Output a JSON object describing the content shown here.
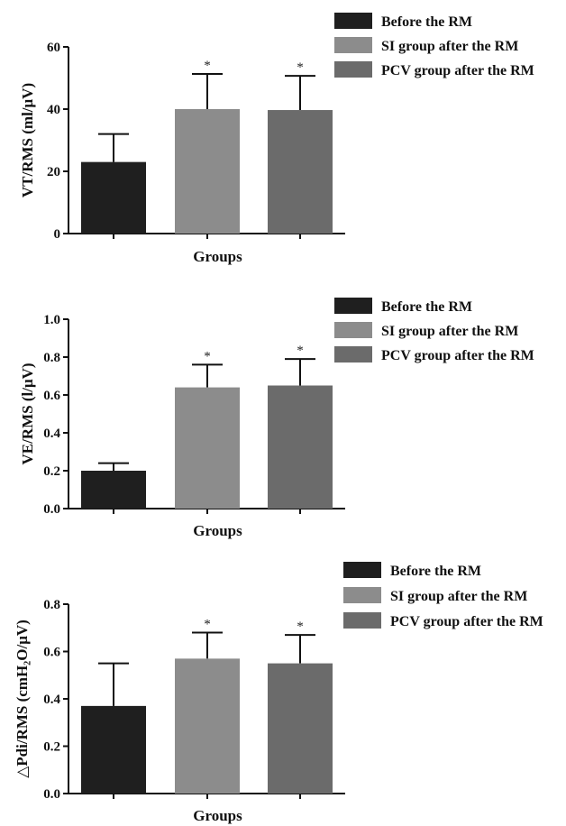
{
  "chart_data": [
    {
      "type": "bar",
      "categories": [
        "Before the RM",
        "SI group after the RM",
        "PCV group after the RM"
      ],
      "series": [
        {
          "values": [
            23,
            40,
            39.7
          ],
          "errors": [
            9,
            11.3,
            11
          ]
        }
      ],
      "significance": [
        "",
        "*",
        "*"
      ],
      "colors": [
        "#1f1f1f",
        "#8c8c8c",
        "#6b6b6b"
      ],
      "ylabel": "VT/RMS (ml/μV)",
      "xlabel": "Groups",
      "ylim": [
        0,
        60
      ],
      "yticks": [
        "0",
        "20",
        "40",
        "60"
      ],
      "legend": [
        "Before the RM",
        "SI group after the RM",
        "PCV group after the RM"
      ],
      "legend_position": "top-right"
    },
    {
      "type": "bar",
      "categories": [
        "Before the RM",
        "SI group after the RM",
        "PCV group after the RM"
      ],
      "series": [
        {
          "values": [
            0.2,
            0.64,
            0.65
          ],
          "errors": [
            0.04,
            0.12,
            0.14
          ]
        }
      ],
      "significance": [
        "",
        "*",
        "*"
      ],
      "colors": [
        "#1f1f1f",
        "#8c8c8c",
        "#6b6b6b"
      ],
      "ylabel": "VE/RMS (l/μV)",
      "xlabel": "Groups",
      "ylim": [
        0,
        1.0
      ],
      "yticks": [
        "0.0",
        "0.2",
        "0.4",
        "0.6",
        "0.8",
        "1.0"
      ],
      "legend": [
        "Before the RM",
        "SI group after the RM",
        "PCV group after the RM"
      ],
      "legend_position": "top-right"
    },
    {
      "type": "bar",
      "categories": [
        "Before the RM",
        "SI group after the RM",
        "PCV group after the RM"
      ],
      "series": [
        {
          "values": [
            0.37,
            0.57,
            0.55
          ],
          "errors": [
            0.18,
            0.11,
            0.12
          ]
        }
      ],
      "significance": [
        "",
        "*",
        "*"
      ],
      "colors": [
        "#1f1f1f",
        "#8c8c8c",
        "#6b6b6b"
      ],
      "ylabel": "△Pdi/RMS (cmH₂O/μV)",
      "xlabel": "Groups",
      "ylim": [
        0,
        0.8
      ],
      "yticks": [
        "0.0",
        "0.2",
        "0.4",
        "0.6",
        "0.8"
      ],
      "legend": [
        "Before the RM",
        "SI group after the RM",
        "PCV group after the RM"
      ],
      "legend_position": "top-right"
    }
  ]
}
